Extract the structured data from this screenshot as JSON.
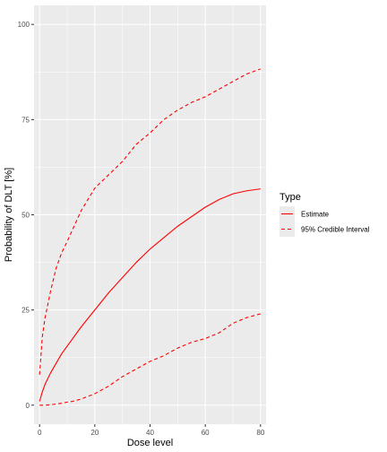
{
  "chart_data": {
    "type": "line",
    "xlabel": "Dose level",
    "ylabel": "Probability of DLT [%]",
    "xlim": [
      -2,
      82
    ],
    "ylim": [
      -5,
      105
    ],
    "x_ticks": [
      0,
      20,
      40,
      60,
      80
    ],
    "y_ticks": [
      0,
      25,
      50,
      75,
      100
    ],
    "grid": true,
    "legend": {
      "title": "Type",
      "placement": "right",
      "entries": [
        {
          "label": "Estimate",
          "linestyle": "solid"
        },
        {
          "label": "95% Credible Interval",
          "linestyle": "dashed"
        }
      ]
    },
    "colors": {
      "line": "#ff0000",
      "panel_background": "#ebebeb",
      "grid": "#ffffff",
      "legend_key_background": "#ebebeb"
    },
    "series": [
      {
        "linestyle": "solid",
        "x": [
          0,
          1,
          2,
          4,
          6,
          8,
          10,
          15,
          20,
          25,
          30,
          35,
          40,
          45,
          50,
          55,
          60,
          65,
          70,
          75,
          80
        ],
        "y": [
          1,
          3.5,
          5.5,
          8.5,
          11,
          13.5,
          15.5,
          20.5,
          25,
          29.5,
          33.5,
          37.5,
          41,
          44,
          47,
          49.5,
          52,
          54,
          55.5,
          56.3,
          56.8
        ]
      },
      {
        "linestyle": "dashed",
        "x": [
          0,
          1,
          2,
          4,
          6,
          8,
          10,
          15,
          20,
          25,
          30,
          35,
          40,
          45,
          50,
          55,
          60,
          65,
          70,
          75,
          80
        ],
        "y": [
          8,
          18,
          23,
          30,
          36,
          40,
          43,
          51,
          57,
          60.5,
          64,
          68.5,
          71.5,
          75,
          77.5,
          79.5,
          81,
          83,
          85,
          87,
          88.3
        ]
      },
      {
        "linestyle": "dashed",
        "x": [
          0,
          2,
          4,
          6,
          8,
          10,
          12,
          15,
          20,
          25,
          30,
          35,
          40,
          45,
          50,
          55,
          60,
          65,
          70,
          75,
          80
        ],
        "y": [
          0,
          0,
          0.1,
          0.3,
          0.5,
          0.8,
          1,
          1.6,
          3,
          5,
          7.5,
          9.5,
          11.5,
          13,
          15,
          16.5,
          17.5,
          19,
          21.5,
          23,
          24
        ]
      }
    ]
  }
}
